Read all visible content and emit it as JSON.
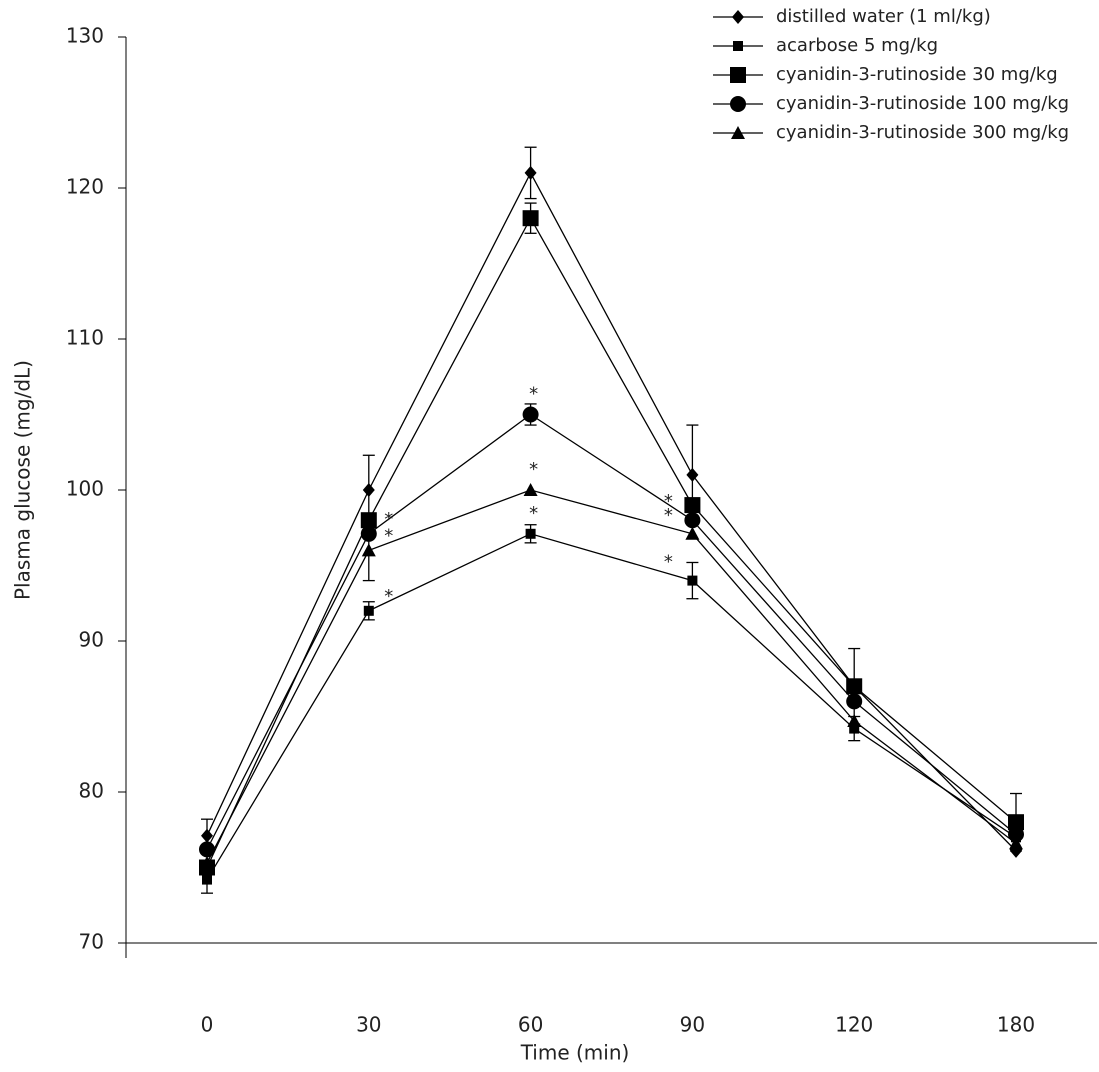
{
  "chart_data": {
    "type": "line",
    "x_label": "Time  (min)",
    "y_label": "Plasma glucose  (mg/dL)",
    "categories": [
      "0",
      "30",
      "60",
      "90",
      "120",
      "180"
    ],
    "ylim": [
      70,
      130
    ],
    "yticks": [
      70,
      80,
      90,
      100,
      110,
      120,
      130
    ],
    "color": "#000000",
    "series": [
      {
        "name": "distilled water  (1 ml/kg)",
        "marker": "diamond",
        "values": [
          77.1,
          100,
          121,
          101,
          87,
          76.1
        ],
        "errors": [
          1.1,
          2.3,
          1.7,
          3.3,
          null,
          null
        ],
        "significance": [
          null,
          null,
          null,
          null,
          null,
          null
        ]
      },
      {
        "name": "acarbose 5 mg/kg",
        "marker": "square-small",
        "values": [
          74.2,
          92,
          97.1,
          94,
          84.2,
          77
        ],
        "errors": [
          0.9,
          0.6,
          0.6,
          1.2,
          0.8,
          0.8
        ],
        "significance": [
          null,
          "*",
          "*",
          "*",
          null,
          null
        ]
      },
      {
        "name": "cyanidin-3-rutinoside 30 mg/kg",
        "marker": "square-large",
        "values": [
          75,
          98,
          118,
          99,
          87,
          78
        ],
        "errors": [
          null,
          null,
          1,
          null,
          2.5,
          1.9
        ],
        "significance": [
          null,
          null,
          null,
          null,
          null,
          null
        ]
      },
      {
        "name": "cyanidin-3-rutinoside 100 mg/kg",
        "marker": "circle",
        "values": [
          76.2,
          97.1,
          105,
          98,
          86,
          77.2
        ],
        "errors": [
          null,
          null,
          0.7,
          null,
          null,
          null
        ],
        "significance": [
          null,
          "*",
          "*",
          "*",
          null,
          null
        ]
      },
      {
        "name": "cyanidin-3-rutinoside 300 mg/kg",
        "marker": "triangle",
        "values": [
          75.3,
          96,
          100,
          97.1,
          84.7,
          76.6
        ],
        "errors": [
          null,
          2,
          null,
          null,
          null,
          null
        ],
        "significance": [
          null,
          "*",
          "*",
          "*",
          null,
          null
        ]
      }
    ]
  }
}
